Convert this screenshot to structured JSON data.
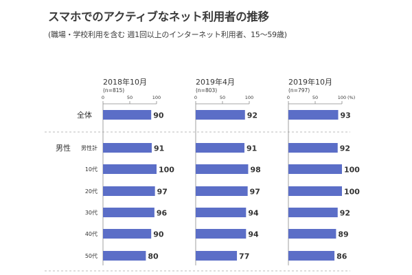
{
  "title": "スマホでのアクティブなネット利用者の推移",
  "subtitle": "(職場・学校利用を含む 週1回以上のインターネット利用者、15〜59歳)",
  "colors": {
    "bar": "#5b6ec7",
    "axis": "#888888",
    "separator": "#bbbbbb",
    "text": "#333333"
  },
  "chart_data": {
    "type": "bar",
    "orientation": "horizontal",
    "xlim": [
      0,
      100
    ],
    "ticks": [
      "0",
      "50",
      "100"
    ],
    "unit_label": "(%)",
    "group_label": "男性",
    "categories": [
      "全体",
      "男性計",
      "10代",
      "20代",
      "30代",
      "40代",
      "50代"
    ],
    "panels": [
      {
        "title": "2018年10月",
        "n": "(n=815)",
        "values": [
          90,
          91,
          100,
          97,
          96,
          90,
          80
        ]
      },
      {
        "title": "2019年4月",
        "n": "(n=803)",
        "values": [
          92,
          91,
          98,
          97,
          94,
          94,
          77
        ]
      },
      {
        "title": "2019年10月",
        "n": "(n=797)",
        "values": [
          93,
          92,
          100,
          100,
          92,
          89,
          86
        ]
      }
    ]
  }
}
